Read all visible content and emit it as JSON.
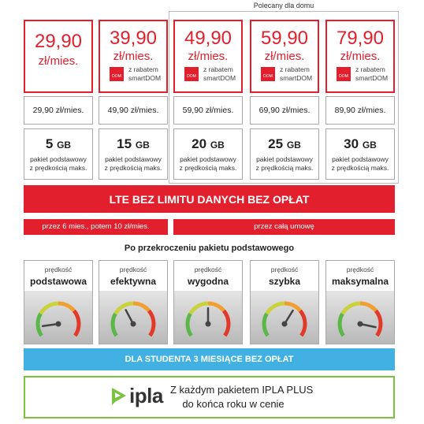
{
  "header": {
    "recommended_label": "Polecany dla domu",
    "discount_icon_label": "DOM"
  },
  "plans": [
    {
      "price": "29,90",
      "unit": "zł/mies.",
      "regular_price": "29,90 zł/mies.",
      "data_amount": "5",
      "data_unit": "GB",
      "data_note": [
        "pakiet podstawowy",
        "z prędkością maks."
      ]
    },
    {
      "price": "39,90",
      "unit": "zł/mies.",
      "discount": [
        "z rabatem",
        "smartDOM"
      ],
      "regular_price": "49,90 zł/mies.",
      "data_amount": "15",
      "data_unit": "GB",
      "data_note": [
        "pakiet podstawowy",
        "z prędkością maks."
      ]
    },
    {
      "price": "49,90",
      "unit": "zł/mies.",
      "discount": [
        "z rabatem",
        "smartDOM"
      ],
      "regular_price": "59,90 zł/mies.",
      "data_amount": "20",
      "data_unit": "GB",
      "data_note": [
        "pakiet podstawowy",
        "z prędkością maks."
      ]
    },
    {
      "price": "59,90",
      "unit": "zł/mies.",
      "discount": [
        "z rabatem",
        "smartDOM"
      ],
      "regular_price": "69,90 zł/mies.",
      "data_amount": "25",
      "data_unit": "GB",
      "data_note": [
        "pakiet podstawowy",
        "z prędkością maks."
      ]
    },
    {
      "price": "79,90",
      "unit": "zł/mies.",
      "discount": [
        "z rabatem",
        "smartDOM"
      ],
      "regular_price": "89,90 zł/mies.",
      "data_amount": "30",
      "data_unit": "GB",
      "data_note": [
        "pakiet podstawowy",
        "z prędkością maks."
      ]
    }
  ],
  "banner": "LTE BEZ LIMITU DANYCH BEZ OPŁAT",
  "terms": [
    "przez 6 mies., potem 10 zł/mies.",
    "przez całą umowę"
  ],
  "speed_heading": "Po przekroczeniu pakietu podstawowego",
  "speeds": [
    {
      "label": "prędkość",
      "name": "podstawowa"
    },
    {
      "label": "prędkość",
      "name": "efektywna"
    },
    {
      "label": "prędkość",
      "name": "wygodna"
    },
    {
      "label": "prędkość",
      "name": "szybka"
    },
    {
      "label": "prędkość",
      "name": "maksymalna"
    }
  ],
  "student_banner": "DLA STUDENTA 3 MIESIĄCE BEZ OPŁAT",
  "ipla": {
    "logo": "ipla",
    "lines": [
      "Z każdym pakietem IPLA PLUS",
      "do końca roku w cenie"
    ]
  }
}
